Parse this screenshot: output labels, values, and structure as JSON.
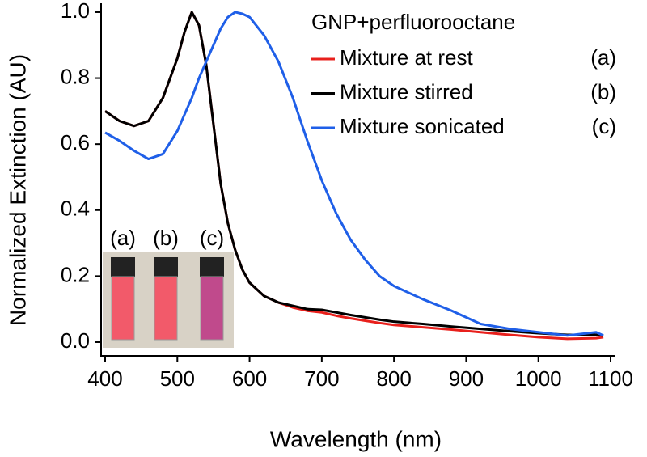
{
  "chart_data": {
    "type": "line",
    "xlabel": "Wavelength (nm)",
    "ylabel": "Normalized Extinction (AU)",
    "legend_title": "GNP+perfluorooctane",
    "legend_tags": [
      "(a)",
      "(b)",
      "(c)"
    ],
    "legend_loc": "upper right",
    "inset_labels": [
      "(a)",
      "(b)",
      "(c)"
    ],
    "x": [
      400,
      420,
      440,
      460,
      480,
      500,
      510,
      520,
      530,
      540,
      550,
      560,
      570,
      580,
      590,
      600,
      620,
      640,
      660,
      680,
      700,
      720,
      740,
      760,
      780,
      800,
      840,
      880,
      920,
      960,
      1000,
      1040,
      1080,
      1090
    ],
    "series": [
      {
        "name": "Mixture at rest",
        "color": "#e8201c",
        "values": [
          0.7,
          0.67,
          0.655,
          0.67,
          0.74,
          0.86,
          0.94,
          1.0,
          0.96,
          0.84,
          0.66,
          0.48,
          0.36,
          0.28,
          0.22,
          0.18,
          0.14,
          0.12,
          0.105,
          0.095,
          0.09,
          0.08,
          0.072,
          0.065,
          0.058,
          0.052,
          0.045,
          0.038,
          0.03,
          0.022,
          0.015,
          0.01,
          0.012,
          0.015
        ]
      },
      {
        "name": "Mixture stirred",
        "color": "#000000",
        "values": [
          0.7,
          0.67,
          0.655,
          0.67,
          0.74,
          0.86,
          0.94,
          1.0,
          0.96,
          0.84,
          0.66,
          0.48,
          0.36,
          0.28,
          0.22,
          0.18,
          0.14,
          0.12,
          0.11,
          0.1,
          0.098,
          0.09,
          0.082,
          0.075,
          0.068,
          0.062,
          0.055,
          0.047,
          0.04,
          0.033,
          0.027,
          0.022,
          0.022,
          0.02
        ]
      },
      {
        "name": "Mixture sonicated",
        "color": "#1f5fe8",
        "values": [
          0.635,
          0.61,
          0.58,
          0.555,
          0.57,
          0.64,
          0.69,
          0.74,
          0.8,
          0.85,
          0.9,
          0.95,
          0.985,
          1.0,
          0.995,
          0.985,
          0.93,
          0.85,
          0.74,
          0.61,
          0.49,
          0.39,
          0.31,
          0.25,
          0.2,
          0.17,
          0.13,
          0.095,
          0.055,
          0.04,
          0.03,
          0.02,
          0.03,
          0.02
        ]
      }
    ],
    "xlim": [
      400,
      1100
    ],
    "xticks": [
      400,
      500,
      600,
      700,
      800,
      900,
      1000,
      1100
    ],
    "ylim": [
      -0.04,
      1.02
    ],
    "yticks": [
      {
        "value": 0,
        "label": "0.0"
      },
      {
        "value": 0.2,
        "label": "0.2"
      },
      {
        "value": 0.4,
        "label": "0.4"
      },
      {
        "value": 0.6,
        "label": "0.6"
      },
      {
        "value": 0.8,
        "label": "0.8"
      },
      {
        "value": 1.0,
        "label": "1.0"
      }
    ],
    "grid": false
  }
}
